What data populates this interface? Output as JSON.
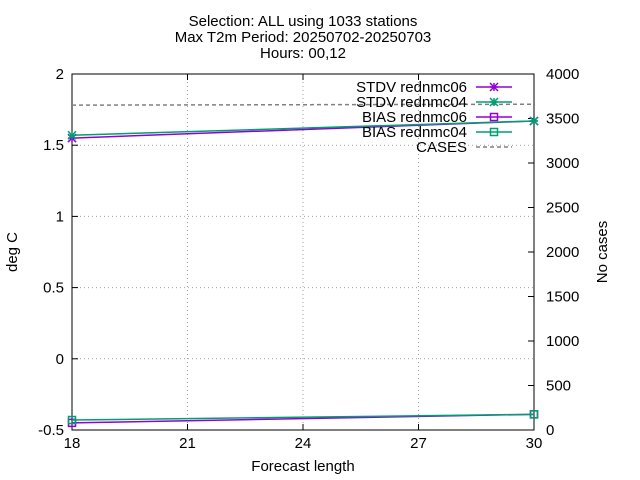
{
  "chart_data": {
    "type": "line",
    "title_lines": [
      "Selection: ALL using  1033 stations",
      "Max T2m   Period: 20250702-20250703",
      "Hours: 00,12"
    ],
    "xlabel": "Forecast length",
    "ylabel": "deg C",
    "y2label": "No cases",
    "xlim": [
      18,
      30
    ],
    "ylim": [
      -0.5,
      2
    ],
    "y2lim": [
      0,
      4000
    ],
    "x_ticks": [
      18,
      21,
      24,
      27,
      30
    ],
    "y_ticks": [
      -0.5,
      0,
      0.5,
      1,
      1.5,
      2
    ],
    "y2_ticks": [
      0,
      500,
      1000,
      1500,
      2000,
      2500,
      3000,
      3500,
      4000
    ],
    "grid": true,
    "legend_position": "top-right",
    "x": [
      18,
      30
    ],
    "series": [
      {
        "name": "STDV rednmc06",
        "axis": "y",
        "values": [
          1.55,
          1.67
        ],
        "color": "#9400d3",
        "marker": "asterisk",
        "dash": false
      },
      {
        "name": "STDV rednmc04",
        "axis": "y",
        "values": [
          1.57,
          1.67
        ],
        "color": "#009e73",
        "marker": "asterisk",
        "dash": false
      },
      {
        "name": "BIAS rednmc06",
        "axis": "y",
        "values": [
          -0.45,
          -0.39
        ],
        "color": "#9400d3",
        "marker": "square",
        "dash": false
      },
      {
        "name": "BIAS rednmc04",
        "axis": "y",
        "values": [
          -0.43,
          -0.39
        ],
        "color": "#009e73",
        "marker": "square",
        "dash": false
      },
      {
        "name": "CASES",
        "axis": "y2",
        "values": [
          3650,
          3660
        ],
        "color": "#808080",
        "marker": "none",
        "dash": true
      }
    ]
  }
}
